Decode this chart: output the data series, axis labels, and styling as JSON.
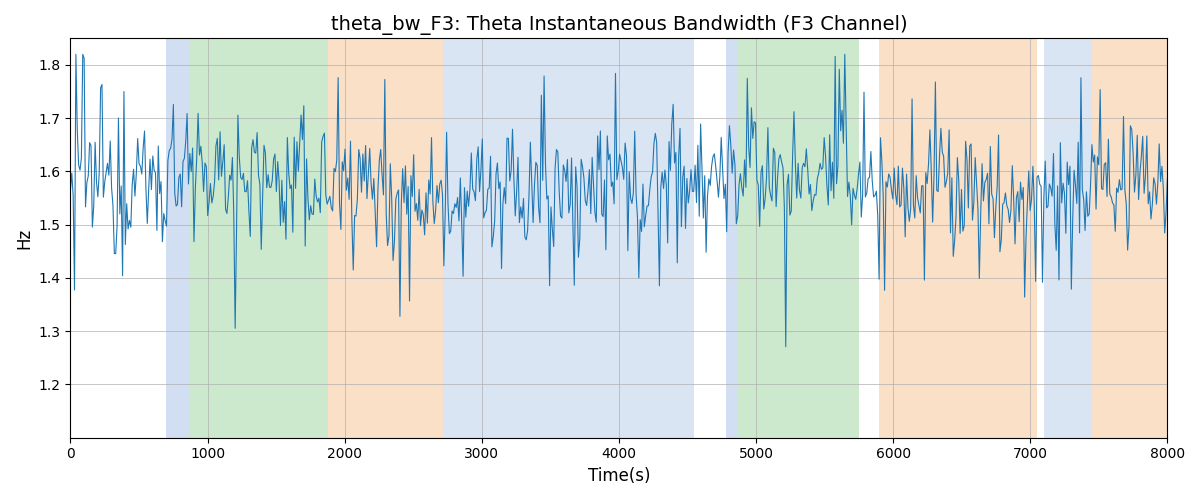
{
  "title": "theta_bw_F3: Theta Instantaneous Bandwidth (F3 Channel)",
  "xlabel": "Time(s)",
  "ylabel": "Hz",
  "xlim": [
    0,
    8000
  ],
  "ylim": [
    1.1,
    1.85
  ],
  "yticks": [
    1.2,
    1.3,
    1.4,
    1.5,
    1.6,
    1.7,
    1.8
  ],
  "line_color": "#1f77b4",
  "line_width": 0.8,
  "background_color": "#ffffff",
  "grid_color": "#b0b0b0",
  "regions": [
    {
      "xmin": 700,
      "xmax": 870,
      "color": "#aec6e8",
      "alpha": 0.55
    },
    {
      "xmin": 870,
      "xmax": 1880,
      "color": "#90d090",
      "alpha": 0.45
    },
    {
      "xmin": 1880,
      "xmax": 2720,
      "color": "#f5c89a",
      "alpha": 0.55
    },
    {
      "xmin": 2720,
      "xmax": 4550,
      "color": "#aec6e8",
      "alpha": 0.45
    },
    {
      "xmin": 4780,
      "xmax": 4870,
      "color": "#aec6e8",
      "alpha": 0.55
    },
    {
      "xmin": 4870,
      "xmax": 5750,
      "color": "#90d090",
      "alpha": 0.45
    },
    {
      "xmin": 5900,
      "xmax": 7050,
      "color": "#f5c89a",
      "alpha": 0.55
    },
    {
      "xmin": 7100,
      "xmax": 7450,
      "color": "#aec6e8",
      "alpha": 0.45
    },
    {
      "xmin": 7450,
      "xmax": 8000,
      "color": "#f5c89a",
      "alpha": 0.55
    }
  ],
  "seed": 12345,
  "n_points": 800,
  "base_mean": 1.575,
  "noise_std": 0.055,
  "title_fontsize": 14
}
